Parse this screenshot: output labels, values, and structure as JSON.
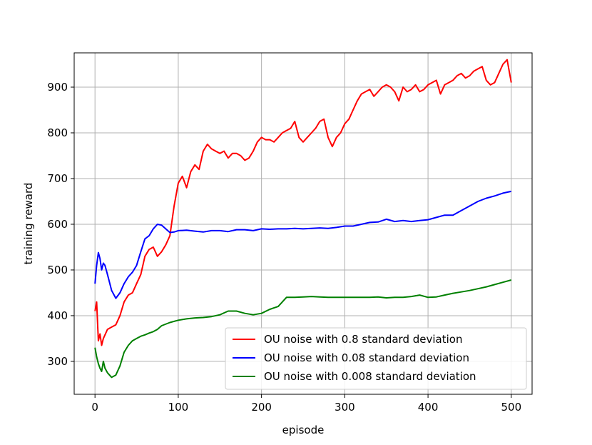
{
  "chart_data": {
    "type": "line",
    "title": "",
    "xlabel": "episode",
    "ylabel": "training reward",
    "xlim": [
      -25,
      525
    ],
    "ylim": [
      228,
      975
    ],
    "xticks": [
      0,
      100,
      200,
      300,
      400,
      500
    ],
    "yticks": [
      300,
      400,
      500,
      600,
      700,
      800,
      900
    ],
    "grid": true,
    "legend_position": "lower-right",
    "series": [
      {
        "name": "OU noise with 0.8 standard deviation",
        "color": "#ff0000",
        "x": [
          0,
          2,
          4,
          6,
          8,
          10,
          15,
          20,
          25,
          30,
          35,
          40,
          45,
          50,
          55,
          60,
          65,
          70,
          75,
          80,
          85,
          90,
          95,
          100,
          105,
          110,
          115,
          120,
          125,
          130,
          135,
          140,
          145,
          150,
          155,
          160,
          165,
          170,
          175,
          180,
          185,
          190,
          195,
          200,
          205,
          210,
          215,
          220,
          225,
          230,
          235,
          240,
          245,
          250,
          255,
          260,
          265,
          270,
          275,
          280,
          285,
          290,
          295,
          300,
          305,
          310,
          315,
          320,
          325,
          330,
          335,
          340,
          345,
          350,
          355,
          360,
          365,
          370,
          375,
          380,
          385,
          390,
          395,
          400,
          405,
          410,
          415,
          420,
          425,
          430,
          435,
          440,
          445,
          450,
          455,
          460,
          465,
          470,
          475,
          480,
          485,
          490,
          495,
          500
        ],
        "y": [
          410,
          430,
          345,
          360,
          335,
          350,
          370,
          375,
          380,
          400,
          430,
          445,
          450,
          470,
          490,
          530,
          545,
          550,
          530,
          540,
          555,
          575,
          640,
          690,
          705,
          680,
          715,
          730,
          720,
          760,
          775,
          765,
          760,
          755,
          760,
          745,
          755,
          755,
          750,
          740,
          745,
          760,
          780,
          790,
          785,
          785,
          780,
          790,
          800,
          805,
          810,
          825,
          790,
          780,
          790,
          800,
          810,
          825,
          830,
          790,
          770,
          790,
          800,
          820,
          830,
          850,
          870,
          885,
          890,
          895,
          880,
          890,
          900,
          905,
          900,
          890,
          870,
          900,
          890,
          895,
          905,
          890,
          895,
          905,
          910,
          915,
          885,
          905,
          910,
          915,
          925,
          930,
          920,
          925,
          935,
          940,
          945,
          915,
          905,
          910,
          930,
          950,
          960,
          910
        ]
      },
      {
        "name": "OU noise with 0.08 standard deviation",
        "color": "#0000ff",
        "x": [
          0,
          2,
          4,
          6,
          8,
          10,
          12,
          15,
          20,
          25,
          30,
          35,
          40,
          45,
          50,
          55,
          60,
          65,
          70,
          75,
          80,
          85,
          90,
          95,
          100,
          110,
          120,
          130,
          140,
          150,
          160,
          170,
          180,
          190,
          200,
          210,
          220,
          230,
          240,
          250,
          260,
          270,
          280,
          290,
          300,
          310,
          320,
          330,
          340,
          350,
          360,
          370,
          380,
          390,
          400,
          410,
          420,
          430,
          440,
          450,
          460,
          470,
          480,
          490,
          500
        ],
        "y": [
          470,
          510,
          538,
          525,
          500,
          515,
          510,
          490,
          455,
          438,
          450,
          470,
          485,
          495,
          510,
          540,
          568,
          575,
          590,
          600,
          598,
          590,
          582,
          583,
          586,
          587,
          585,
          583,
          586,
          586,
          584,
          588,
          588,
          586,
          590,
          589,
          590,
          590,
          591,
          590,
          591,
          592,
          591,
          593,
          596,
          596,
          600,
          604,
          605,
          611,
          606,
          608,
          606,
          608,
          610,
          615,
          620,
          620,
          630,
          640,
          650,
          657,
          662,
          668,
          672
        ]
      },
      {
        "name": "OU noise with 0.008 standard deviation",
        "color": "#008000",
        "x": [
          0,
          2,
          4,
          6,
          8,
          10,
          12,
          15,
          20,
          25,
          30,
          35,
          40,
          45,
          50,
          55,
          60,
          65,
          70,
          75,
          80,
          90,
          100,
          110,
          120,
          130,
          140,
          150,
          160,
          170,
          180,
          190,
          200,
          210,
          220,
          230,
          240,
          250,
          260,
          270,
          280,
          290,
          300,
          310,
          320,
          330,
          340,
          350,
          360,
          370,
          380,
          390,
          400,
          410,
          420,
          430,
          440,
          450,
          460,
          470,
          480,
          490,
          500
        ],
        "y": [
          330,
          310,
          295,
          285,
          278,
          300,
          285,
          275,
          265,
          270,
          290,
          320,
          335,
          345,
          350,
          355,
          358,
          362,
          365,
          370,
          378,
          385,
          390,
          393,
          395,
          396,
          398,
          402,
          410,
          410,
          405,
          402,
          405,
          414,
          420,
          440,
          440,
          441,
          442,
          441,
          440,
          440,
          440,
          440,
          440,
          440,
          441,
          439,
          440,
          440,
          442,
          445,
          440,
          441,
          445,
          449,
          452,
          455,
          459,
          463,
          468,
          473,
          478
        ]
      }
    ]
  }
}
